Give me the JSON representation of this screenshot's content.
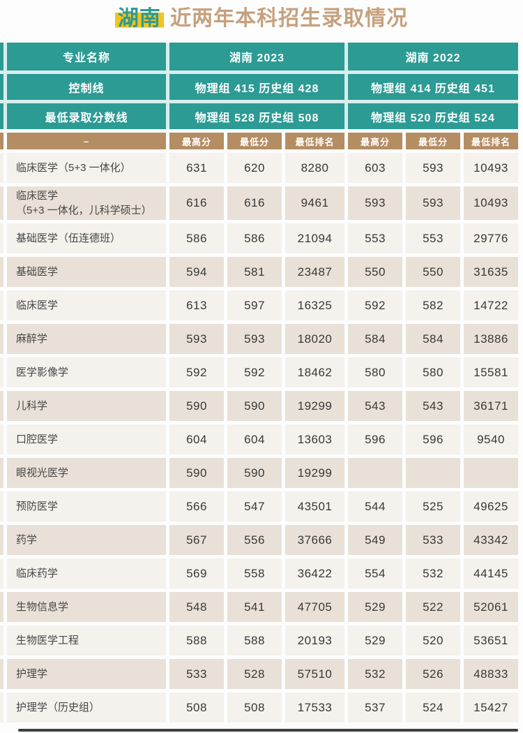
{
  "title": {
    "region": "湖南",
    "rest": " 近两年本科招生录取情况"
  },
  "colors": {
    "header_teal": "#2c9b94",
    "subheader_tan": "#b48d63",
    "region_highlight_yellow": "#f3c41f",
    "title_text_tan": "#c6a07d",
    "row_beige": "#e9e1d7",
    "row_light": "#f5f1ec"
  },
  "chart_data": {
    "type": "table",
    "title": "湖南 近两年本科招生录取情况",
    "header": {
      "specialty": "专业名称",
      "y2023": "湖南 2023",
      "y2022": "湖南 2022",
      "control_label": "控制线",
      "control_2023": "物理组 415 历史组 428",
      "control_2022": "物理组 414 历史组 451",
      "minline_label": "最低录取分数线",
      "minline_2023": "物理组 528 历史组 508",
      "minline_2022": "物理组 520 历史组 524"
    },
    "subheader": {
      "name": "–",
      "cols": [
        "最高分",
        "最低分",
        "最低排名",
        "最高分",
        "最低分",
        "最低排名"
      ]
    },
    "rows": [
      {
        "name": "临床医学（5+3 一体化）",
        "values": [
          "631",
          "620",
          "8280",
          "603",
          "593",
          "10493"
        ]
      },
      {
        "name": "临床医学\n（5+3 一体化，儿科学硕士）",
        "values": [
          "616",
          "616",
          "9461",
          "593",
          "593",
          "10493"
        ]
      },
      {
        "name": "基础医学（伍连德班）",
        "values": [
          "586",
          "586",
          "21094",
          "553",
          "553",
          "29776"
        ]
      },
      {
        "name": "基础医学",
        "values": [
          "594",
          "581",
          "23487",
          "550",
          "550",
          "31635"
        ]
      },
      {
        "name": "临床医学",
        "values": [
          "613",
          "597",
          "16325",
          "592",
          "582",
          "14722"
        ]
      },
      {
        "name": "麻醉学",
        "values": [
          "593",
          "593",
          "18020",
          "584",
          "584",
          "13886"
        ]
      },
      {
        "name": "医学影像学",
        "values": [
          "592",
          "592",
          "18462",
          "580",
          "580",
          "15581"
        ]
      },
      {
        "name": "儿科学",
        "values": [
          "590",
          "590",
          "19299",
          "543",
          "543",
          "36171"
        ]
      },
      {
        "name": "口腔医学",
        "values": [
          "604",
          "604",
          "13603",
          "596",
          "596",
          "9540"
        ]
      },
      {
        "name": "眼视光医学",
        "values": [
          "590",
          "590",
          "19299",
          "",
          "",
          ""
        ]
      },
      {
        "name": "预防医学",
        "values": [
          "566",
          "547",
          "43501",
          "544",
          "525",
          "49625"
        ]
      },
      {
        "name": "药学",
        "values": [
          "567",
          "556",
          "37666",
          "549",
          "533",
          "43342"
        ]
      },
      {
        "name": "临床药学",
        "values": [
          "569",
          "558",
          "36422",
          "554",
          "532",
          "44145"
        ]
      },
      {
        "name": "生物信息学",
        "values": [
          "548",
          "541",
          "47705",
          "529",
          "522",
          "52061"
        ]
      },
      {
        "name": "生物医学工程",
        "values": [
          "588",
          "588",
          "20193",
          "529",
          "520",
          "53651"
        ]
      },
      {
        "name": "护理学",
        "values": [
          "533",
          "528",
          "57510",
          "532",
          "526",
          "48833"
        ]
      },
      {
        "name": "护理学（历史组）",
        "values": [
          "508",
          "508",
          "17533",
          "537",
          "524",
          "15427"
        ]
      }
    ]
  }
}
